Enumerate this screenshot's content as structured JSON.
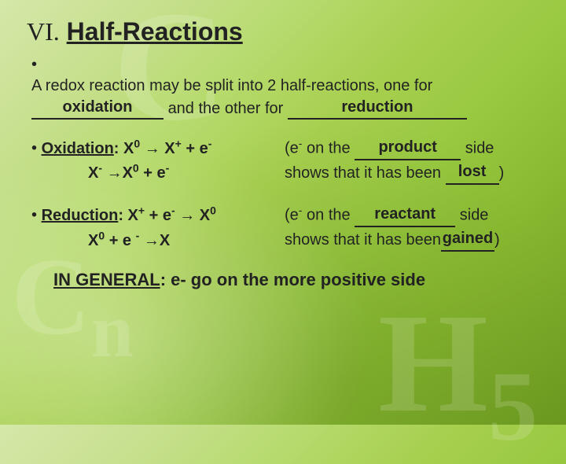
{
  "title": {
    "roman": "VI.",
    "text": "Half-Reactions"
  },
  "intro": {
    "line": "A redox reaction may be split into 2 half-reactions, one for",
    "blank1": "oxidation",
    "mid": " and the other for ",
    "blank2": "reduction"
  },
  "oxidation": {
    "label": "Oxidation",
    "eq1": ": X",
    "sup1": "0",
    "arr": " → X",
    "sup2": "+",
    "tail1": " + e",
    "supm": "-",
    "eq2": "X",
    "sup3": "-",
    "arr2": " →X",
    "sup4": "0",
    "tail2": " + e",
    "supm2": "-",
    "right_a": "(e",
    "e_sup": "-",
    "right_b": " on the ",
    "blank_side": "product",
    "right_c": " side",
    "right_d": "shows that it has been ",
    "blank_lost": "lost",
    "close": ")"
  },
  "reduction": {
    "label": "Reduction",
    "eq1": ": X",
    "sup1": "+",
    "mid1": "  + e",
    "sup_e": "-",
    "arr": " → X",
    "sup2": "0",
    "eq2": "X",
    "sup3": "0",
    "mid2": " + e ",
    "sup_e2": "-",
    "arr2": " →X",
    "right_a": "(e",
    "e_sup": "-",
    "right_b": " on the ",
    "blank_side": "reactant",
    "right_c": " side",
    "right_d": "shows that it has been",
    "blank_g": "gained",
    "close": ")"
  },
  "general": {
    "label": "IN GENERAL",
    "text": ": e- go on the more positive side"
  },
  "colors": {
    "text": "#222222",
    "underline": "#222222"
  }
}
